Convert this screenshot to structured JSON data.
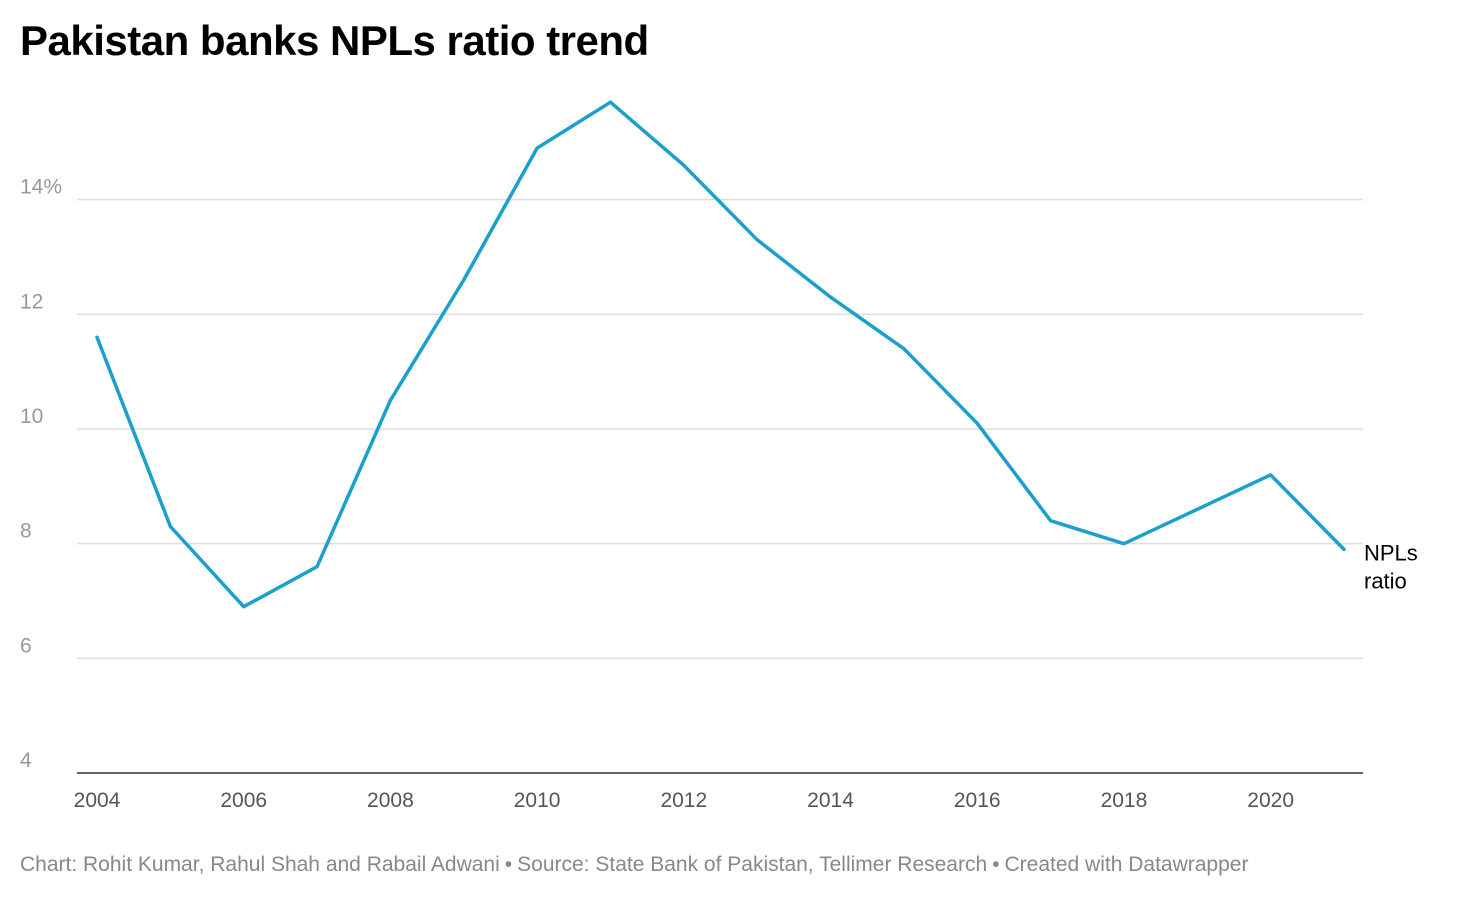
{
  "chart_data": {
    "type": "line",
    "title": "Pakistan banks NPLs ratio trend",
    "xlabel": "",
    "ylabel": "",
    "x": [
      2004,
      2005,
      2006,
      2007,
      2008,
      2009,
      2010,
      2011,
      2012,
      2013,
      2014,
      2015,
      2016,
      2017,
      2018,
      2019,
      2020,
      2021
    ],
    "series": [
      {
        "name": "NPLs ratio",
        "values": [
          11.6,
          8.3,
          6.9,
          7.6,
          10.5,
          12.6,
          14.9,
          15.7,
          14.6,
          13.3,
          12.3,
          11.4,
          10.1,
          8.4,
          8.0,
          8.6,
          9.2,
          7.9
        ],
        "color": "#1d9fcc"
      }
    ],
    "series_label_lines": [
      "NPLs",
      "ratio"
    ],
    "xlim": [
      2004,
      2021
    ],
    "ylim": [
      4,
      16
    ],
    "x_ticks": [
      2004,
      2006,
      2008,
      2010,
      2012,
      2014,
      2016,
      2018,
      2020
    ],
    "x_tick_labels": [
      "2004",
      "2006",
      "2008",
      "2010",
      "2012",
      "2014",
      "2016",
      "2018",
      "2020"
    ],
    "y_ticks": [
      4,
      6,
      8,
      10,
      12,
      14
    ],
    "y_tick_labels": [
      "4",
      "6",
      "8",
      "10",
      "12",
      "14%"
    ],
    "grid": true,
    "legend": "direct label at line end",
    "colors": {
      "line": "#1d9fcc",
      "grid": "#dddddd",
      "axis": "#333333",
      "y_tick_text": "#999999",
      "x_tick_text": "#555555"
    }
  },
  "footer": {
    "credit": "Chart: Rohit Kumar, Rahul Shah and Rabail Adwani",
    "separator": "•",
    "source": "Source: State Bank of Pakistan, Tellimer Research",
    "created_with": "Created with Datawrapper"
  }
}
